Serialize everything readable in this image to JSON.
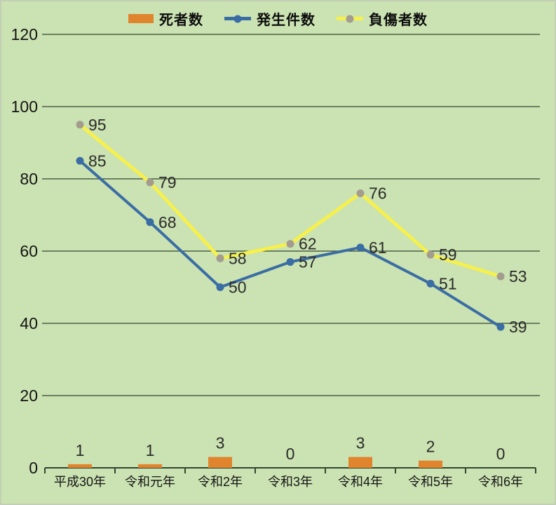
{
  "chart_data": {
    "type": "combo",
    "title": "",
    "categories": [
      "平成30年",
      "令和元年",
      "令和2年",
      "令和3年",
      "令和4年",
      "令和5年",
      "令和6年"
    ],
    "series": [
      {
        "key": "deaths",
        "name": "死者数",
        "type": "bar",
        "color": "#e0852e",
        "values": [
          1,
          1,
          3,
          0,
          3,
          2,
          0
        ]
      },
      {
        "key": "cases",
        "name": "発生件数",
        "type": "line",
        "color": "#3a6da4",
        "marker_color": "#3a6da4",
        "values": [
          85,
          68,
          50,
          57,
          61,
          51,
          39
        ]
      },
      {
        "key": "injuries",
        "name": "負傷者数",
        "type": "line",
        "color": "#f6f04d",
        "marker_color": "#a49c8e",
        "values": [
          95,
          79,
          58,
          62,
          76,
          59,
          53
        ]
      }
    ],
    "ylim": [
      0,
      120
    ],
    "yticks": [
      0,
      20,
      40,
      60,
      80,
      100,
      120
    ],
    "grid": true,
    "legend_position": "top",
    "background_color": "#cbe2b2",
    "gridline_color": "#32452f",
    "axis_color": "#32452f",
    "label_color": "#2b2b2b"
  }
}
